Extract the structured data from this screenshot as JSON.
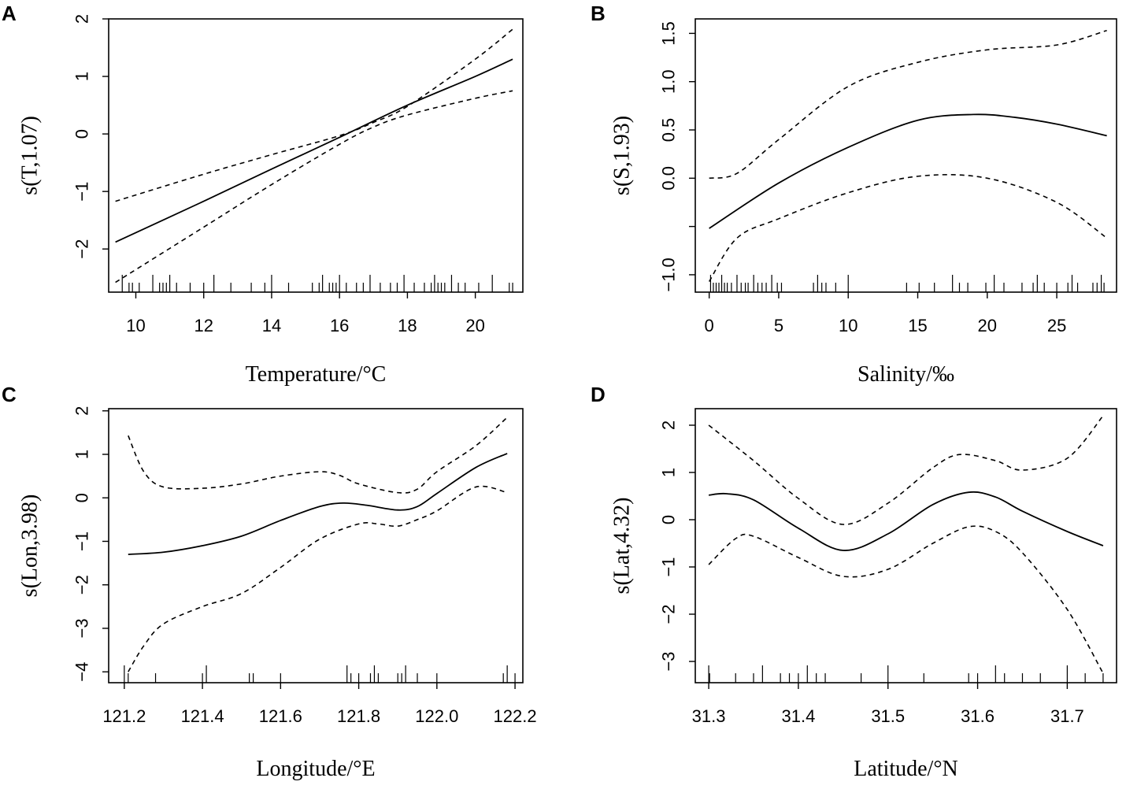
{
  "chart_data": [
    {
      "type": "line",
      "panel": "A",
      "xlabel": "Temperature/°C",
      "ylabel": "s(T,1.07)",
      "xlim": [
        9.2,
        21.4
      ],
      "ylim": [
        -2.75,
        2.0
      ],
      "xticks": [
        10,
        12,
        14,
        16,
        18,
        20
      ],
      "xtick_labels": [
        "10",
        "12",
        "14",
        "16",
        "18",
        "20"
      ],
      "yticks": [
        -2,
        -1,
        0,
        1,
        2
      ],
      "ytick_labels": [
        "−2",
        "−1",
        "0",
        "1",
        "2"
      ],
      "series": [
        {
          "name": "fit",
          "style": "solid",
          "x": [
            9.4,
            12,
            14,
            16,
            18,
            20,
            21.1
          ],
          "y": [
            -1.88,
            -1.17,
            -0.61,
            -0.06,
            0.5,
            1.0,
            1.3
          ]
        },
        {
          "name": "upper",
          "style": "dashed",
          "x": [
            9.4,
            12,
            14,
            16,
            17,
            18,
            20,
            21.1
          ],
          "y": [
            -1.17,
            -0.7,
            -0.36,
            -0.03,
            0.2,
            0.48,
            1.3,
            1.82
          ]
        },
        {
          "name": "lower",
          "style": "dashed",
          "x": [
            9.4,
            12,
            14,
            16,
            17,
            18,
            20,
            21.1
          ],
          "y": [
            -2.58,
            -1.62,
            -0.88,
            -0.18,
            0.12,
            0.33,
            0.62,
            0.75
          ]
        }
      ],
      "rug": [
        9.6,
        9.8,
        9.9,
        10.1,
        10.5,
        10.7,
        10.8,
        10.9,
        11.0,
        11.2,
        11.6,
        12.0,
        12.3,
        12.8,
        13.4,
        13.8,
        14.0,
        14.5,
        15.2,
        15.4,
        15.5,
        15.7,
        15.8,
        15.9,
        16.0,
        16.2,
        16.5,
        16.7,
        16.9,
        17.2,
        17.5,
        17.7,
        17.9,
        18.2,
        18.5,
        18.7,
        18.8,
        18.9,
        19.0,
        19.1,
        19.3,
        19.5,
        19.7,
        20.1,
        20.5,
        21.0,
        21.1
      ]
    },
    {
      "type": "line",
      "panel": "B",
      "xlabel": "Salinity/‰",
      "ylabel": "s(S,1.93)",
      "xlim": [
        -1.0,
        29.3
      ],
      "ylim": [
        -1.18,
        1.65
      ],
      "xticks": [
        0,
        5,
        10,
        15,
        20,
        25
      ],
      "xtick_labels": [
        "0",
        "5",
        "10",
        "15",
        "20",
        "25"
      ],
      "yticks": [
        -1.0,
        -0.5,
        0.0,
        0.5,
        1.0,
        1.5
      ],
      "ytick_labels": [
        "−1.0",
        "",
        "0.0",
        "0.5",
        "1.0",
        "1.5"
      ],
      "series": [
        {
          "name": "fit",
          "style": "solid",
          "x": [
            0,
            5,
            10,
            15,
            19,
            22,
            25,
            28.6
          ],
          "y": [
            -0.52,
            -0.05,
            0.32,
            0.6,
            0.66,
            0.63,
            0.56,
            0.44
          ]
        },
        {
          "name": "upper",
          "style": "dashed",
          "x": [
            0,
            2,
            5,
            10,
            15,
            20,
            25,
            28.6
          ],
          "y": [
            0.0,
            0.05,
            0.4,
            0.95,
            1.2,
            1.33,
            1.38,
            1.53
          ]
        },
        {
          "name": "lower",
          "style": "dashed",
          "x": [
            0,
            2,
            5,
            10,
            15,
            20,
            25,
            28.6
          ],
          "y": [
            -1.07,
            -0.62,
            -0.42,
            -0.15,
            0.02,
            0.0,
            -0.25,
            -0.62
          ]
        }
      ],
      "rug": [
        0.1,
        0.3,
        0.5,
        0.7,
        0.9,
        1.1,
        1.3,
        1.6,
        2.0,
        2.3,
        2.6,
        2.8,
        3.2,
        3.5,
        3.8,
        4.1,
        4.5,
        4.9,
        5.2,
        7.5,
        7.8,
        8.1,
        8.4,
        9.1,
        10.0,
        14.2,
        15.1,
        16.2,
        17.5,
        18.0,
        18.6,
        19.9,
        20.5,
        21.2,
        22.5,
        23.3,
        23.6,
        24.1,
        25.0,
        25.8,
        26.1,
        26.5,
        27.6,
        27.9,
        28.2,
        28.4
      ]
    },
    {
      "type": "line",
      "panel": "C",
      "xlabel": "Longitude/°E",
      "ylabel": "s(Lon,3.98)",
      "xlim": [
        121.16,
        122.22
      ],
      "ylim": [
        -4.25,
        2.05
      ],
      "xticks": [
        121.2,
        121.4,
        121.6,
        121.8,
        122.0,
        122.2
      ],
      "xtick_labels": [
        "121.2",
        "121.4",
        "121.6",
        "121.8",
        "122.0",
        "122.2"
      ],
      "yticks": [
        -4,
        -3,
        -2,
        -1,
        0,
        1,
        2
      ],
      "ytick_labels": [
        "−4",
        "−3",
        "−2",
        "−1",
        "0",
        "1",
        "2"
      ],
      "series": [
        {
          "name": "fit",
          "style": "solid",
          "x": [
            121.21,
            121.3,
            121.4,
            121.5,
            121.6,
            121.7,
            121.76,
            121.82,
            121.9,
            121.95,
            122.0,
            122.1,
            122.18
          ],
          "y": [
            -1.3,
            -1.25,
            -1.1,
            -0.88,
            -0.52,
            -0.2,
            -0.12,
            -0.17,
            -0.28,
            -0.2,
            0.1,
            0.7,
            1.02
          ]
        },
        {
          "name": "upper",
          "style": "dashed",
          "x": [
            121.21,
            121.25,
            121.3,
            121.4,
            121.5,
            121.6,
            121.7,
            121.75,
            121.8,
            121.9,
            121.95,
            122.0,
            122.1,
            122.18
          ],
          "y": [
            1.43,
            0.6,
            0.25,
            0.22,
            0.32,
            0.5,
            0.6,
            0.52,
            0.32,
            0.12,
            0.2,
            0.6,
            1.2,
            1.85
          ]
        },
        {
          "name": "lower",
          "style": "dashed",
          "x": [
            121.21,
            121.25,
            121.3,
            121.4,
            121.5,
            121.6,
            121.7,
            121.8,
            121.85,
            121.9,
            121.95,
            122.0,
            122.1,
            122.18
          ],
          "y": [
            -4.0,
            -3.4,
            -2.9,
            -2.5,
            -2.2,
            -1.6,
            -0.95,
            -0.6,
            -0.6,
            -0.65,
            -0.5,
            -0.3,
            0.25,
            0.12
          ]
        }
      ],
      "rug": [
        121.2,
        121.21,
        121.28,
        121.4,
        121.41,
        121.52,
        121.53,
        121.6,
        121.77,
        121.78,
        121.8,
        121.83,
        121.84,
        121.85,
        121.9,
        121.91,
        121.92,
        121.95,
        122.0,
        122.17,
        122.18,
        122.2
      ]
    },
    {
      "type": "line",
      "panel": "D",
      "xlabel": "Latitude/°N",
      "ylabel": "s(Lat,4.32)",
      "xlim": [
        31.285,
        31.755
      ],
      "ylim": [
        -3.45,
        2.35
      ],
      "xticks": [
        31.3,
        31.4,
        31.5,
        31.6,
        31.7
      ],
      "xtick_labels": [
        "31.3",
        "31.4",
        "31.5",
        "31.6",
        "31.7"
      ],
      "yticks": [
        -3,
        -2,
        -1,
        0,
        1,
        2
      ],
      "ytick_labels": [
        "−3",
        "−2",
        "−1",
        "0",
        "1",
        "2"
      ],
      "series": [
        {
          "name": "fit",
          "style": "solid",
          "x": [
            31.3,
            31.32,
            31.35,
            31.4,
            31.45,
            31.5,
            31.55,
            31.59,
            31.62,
            31.65,
            31.7,
            31.74
          ],
          "y": [
            0.52,
            0.55,
            0.42,
            -0.18,
            -0.65,
            -0.3,
            0.32,
            0.58,
            0.48,
            0.18,
            -0.25,
            -0.55
          ]
        },
        {
          "name": "upper",
          "style": "dashed",
          "x": [
            31.3,
            31.35,
            31.4,
            31.45,
            31.5,
            31.55,
            31.58,
            31.62,
            31.65,
            31.7,
            31.74
          ],
          "y": [
            2.0,
            1.25,
            0.45,
            -0.1,
            0.35,
            1.1,
            1.38,
            1.25,
            1.05,
            1.3,
            2.2
          ]
        },
        {
          "name": "lower",
          "style": "dashed",
          "x": [
            31.3,
            31.33,
            31.35,
            31.4,
            31.45,
            31.5,
            31.55,
            31.59,
            31.62,
            31.65,
            31.7,
            31.74
          ],
          "y": [
            -0.95,
            -0.4,
            -0.35,
            -0.8,
            -1.2,
            -1.05,
            -0.5,
            -0.15,
            -0.25,
            -0.7,
            -1.9,
            -3.25
          ]
        }
      ],
      "rug": [
        31.3,
        31.301,
        31.33,
        31.35,
        31.36,
        31.38,
        31.39,
        31.4,
        31.41,
        31.42,
        31.43,
        31.47,
        31.5,
        31.54,
        31.59,
        31.6,
        31.62,
        31.63,
        31.65,
        31.67,
        31.7,
        31.72,
        31.74
      ]
    }
  ]
}
